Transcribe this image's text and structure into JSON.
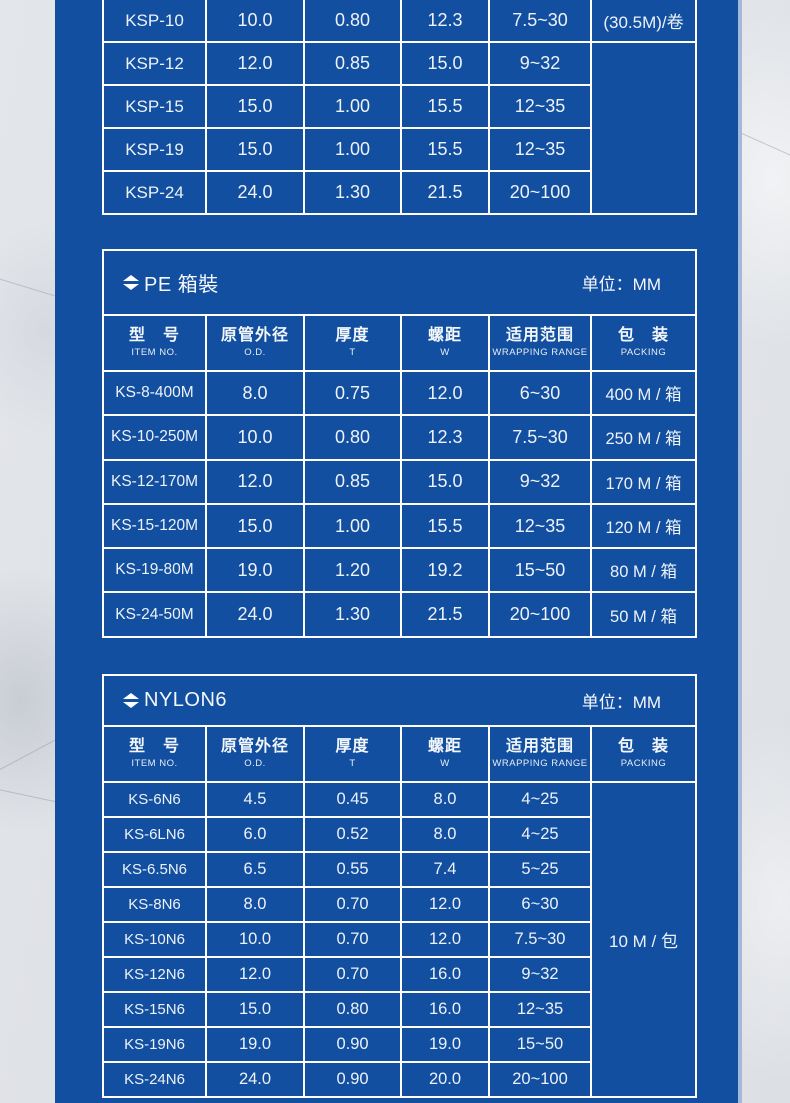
{
  "colors": {
    "panel_blue": "#124fa0",
    "border_white": "#ffffff",
    "text_white": "#eef2f8",
    "panel_edge_light": "#a4b9d7",
    "background_marble": "#e0e3e8"
  },
  "columns": [
    {
      "zh": "型　号",
      "en": "ITEM NO.",
      "key": "item-no"
    },
    {
      "zh": "原管外径",
      "en": "O.D.",
      "key": "od"
    },
    {
      "zh": "厚度",
      "en": "T",
      "key": "thickness"
    },
    {
      "zh": "螺距",
      "en": "W",
      "key": "pitch"
    },
    {
      "zh": "适用范围",
      "en": "WRAPPING RANGE",
      "key": "wrapping-range"
    },
    {
      "zh": "包　装",
      "en": "PACKING",
      "key": "packing"
    }
  ],
  "tables": [
    {
      "id": "ksp",
      "packing_layout": "first-row",
      "packing_value": "(30.5M)/卷",
      "rows": [
        [
          "KSP-10",
          "10.0",
          "0.80",
          "12.3",
          "7.5~30"
        ],
        [
          "KSP-12",
          "12.0",
          "0.85",
          "15.0",
          "9~32"
        ],
        [
          "KSP-15",
          "15.0",
          "1.00",
          "15.5",
          "12~35"
        ],
        [
          "KSP-19",
          "15.0",
          "1.00",
          "15.5",
          "12~35"
        ],
        [
          "KSP-24",
          "24.0",
          "1.30",
          "21.5",
          "20~100"
        ]
      ]
    },
    {
      "id": "pe",
      "title": "PE 箱裝",
      "unit": "单位：MM",
      "packing_layout": "per-row",
      "rows": [
        [
          "KS-8-400M",
          "8.0",
          "0.75",
          "12.0",
          "6~30",
          "400 M / 箱"
        ],
        [
          "KS-10-250M",
          "10.0",
          "0.80",
          "12.3",
          "7.5~30",
          "250 M / 箱"
        ],
        [
          "KS-12-170M",
          "12.0",
          "0.85",
          "15.0",
          "9~32",
          "170 M / 箱"
        ],
        [
          "KS-15-120M",
          "15.0",
          "1.00",
          "15.5",
          "12~35",
          "120 M / 箱"
        ],
        [
          "KS-19-80M",
          "19.0",
          "1.20",
          "19.2",
          "15~50",
          "80 M / 箱"
        ],
        [
          "KS-24-50M",
          "24.0",
          "1.30",
          "21.5",
          "20~100",
          "50 M / 箱"
        ]
      ]
    },
    {
      "id": "nylon6",
      "title": "NYLON6",
      "unit": "单位：MM",
      "packing_layout": "merged",
      "packing_value": "10 M / 包",
      "rows": [
        [
          "KS-6N6",
          "4.5",
          "0.45",
          "8.0",
          "4~25"
        ],
        [
          "KS-6LN6",
          "6.0",
          "0.52",
          "8.0",
          "4~25"
        ],
        [
          "KS-6.5N6",
          "6.5",
          "0.55",
          "7.4",
          "5~25"
        ],
        [
          "KS-8N6",
          "8.0",
          "0.70",
          "12.0",
          "6~30"
        ],
        [
          "KS-10N6",
          "10.0",
          "0.70",
          "12.0",
          "7.5~30"
        ],
        [
          "KS-12N6",
          "12.0",
          "0.70",
          "16.0",
          "9~32"
        ],
        [
          "KS-15N6",
          "15.0",
          "0.80",
          "16.0",
          "12~35"
        ],
        [
          "KS-19N6",
          "19.0",
          "0.90",
          "19.0",
          "15~50"
        ],
        [
          "KS-24N6",
          "24.0",
          "0.90",
          "20.0",
          "20~100"
        ]
      ]
    }
  ]
}
